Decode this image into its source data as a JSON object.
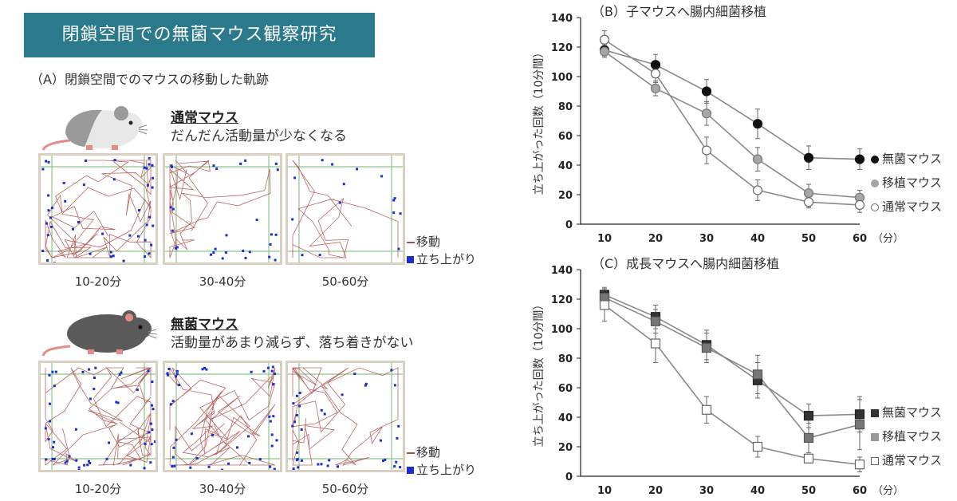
{
  "banner": "閉鎖空間での無菌マウス観察研究",
  "panel_a": {
    "title": "（A）閉鎖空間でのマウスの移動した軌跡",
    "rows": [
      {
        "mouse_name": "通常マウス",
        "description": "だんだん活動量が少なくなる",
        "mouse_color": "#9a9a9a",
        "panels": [
          "10-20分",
          "30-40分",
          "50-60分"
        ]
      },
      {
        "mouse_name": "無菌マウス",
        "description": "活動量があまり減らず、落ち着きがない",
        "mouse_color": "#5a5a5a",
        "panels": [
          "10-20分",
          "30-40分",
          "50-60分"
        ]
      }
    ],
    "legend_move": "移動",
    "legend_rear": "立ち上がり",
    "colors": {
      "track": "#b04a4a",
      "rear": "#1a2ed1",
      "grid": "#8fc48f"
    }
  },
  "chart_data": [
    {
      "type": "line",
      "title": "（B）子マウスへ腸内細菌移植",
      "ylabel": "立ち上がった回数（10分間）",
      "xlabel": "",
      "x_unit": "（分）",
      "x": [
        10,
        20,
        30,
        40,
        50,
        60
      ],
      "ylim": [
        0,
        140
      ],
      "yticks": [
        0,
        20,
        40,
        60,
        80,
        100,
        120,
        140
      ],
      "marker": "circle",
      "series": [
        {
          "name": "無菌マウス",
          "values": [
            118,
            108,
            90,
            68,
            45,
            44
          ],
          "err": [
            4,
            7,
            8,
            10,
            8,
            7
          ],
          "fill": "#111111",
          "stroke": "#111111"
        },
        {
          "name": "移植マウス",
          "values": [
            117,
            92,
            75,
            44,
            21,
            18
          ],
          "err": [
            4,
            5,
            8,
            8,
            6,
            5
          ],
          "fill": "#a6a6a6",
          "stroke": "#777777"
        },
        {
          "name": "通常マウス",
          "values": [
            125,
            102,
            50,
            23,
            15,
            13
          ],
          "err": [
            6,
            6,
            9,
            7,
            4,
            5
          ],
          "fill": "#ffffff",
          "stroke": "#666666"
        }
      ]
    },
    {
      "type": "line",
      "title": "（C）成長マウスへ腸内細菌移植",
      "ylabel": "立ち上がった回数（10分間）",
      "xlabel": "",
      "x_unit": "（分）",
      "x": [
        10,
        20,
        30,
        40,
        50,
        60
      ],
      "ylim": [
        0,
        140
      ],
      "yticks": [
        0,
        20,
        40,
        60,
        80,
        100,
        120,
        140
      ],
      "marker": "square",
      "series": [
        {
          "name": "無菌マウス",
          "values": [
            123,
            108,
            89,
            65,
            41,
            42
          ],
          "err": [
            5,
            8,
            10,
            12,
            8,
            12
          ],
          "fill": "#333333",
          "stroke": "#222222"
        },
        {
          "name": "移植マウス",
          "values": [
            121,
            105,
            87,
            69,
            26,
            35
          ],
          "err": [
            6,
            8,
            10,
            13,
            10,
            17
          ],
          "fill": "#777777",
          "stroke": "#555555"
        },
        {
          "name": "通常マウス",
          "values": [
            116,
            90,
            45,
            20,
            12,
            8
          ],
          "err": [
            11,
            13,
            9,
            7,
            3,
            5
          ],
          "fill": "#ffffff",
          "stroke": "#666666"
        }
      ]
    }
  ]
}
